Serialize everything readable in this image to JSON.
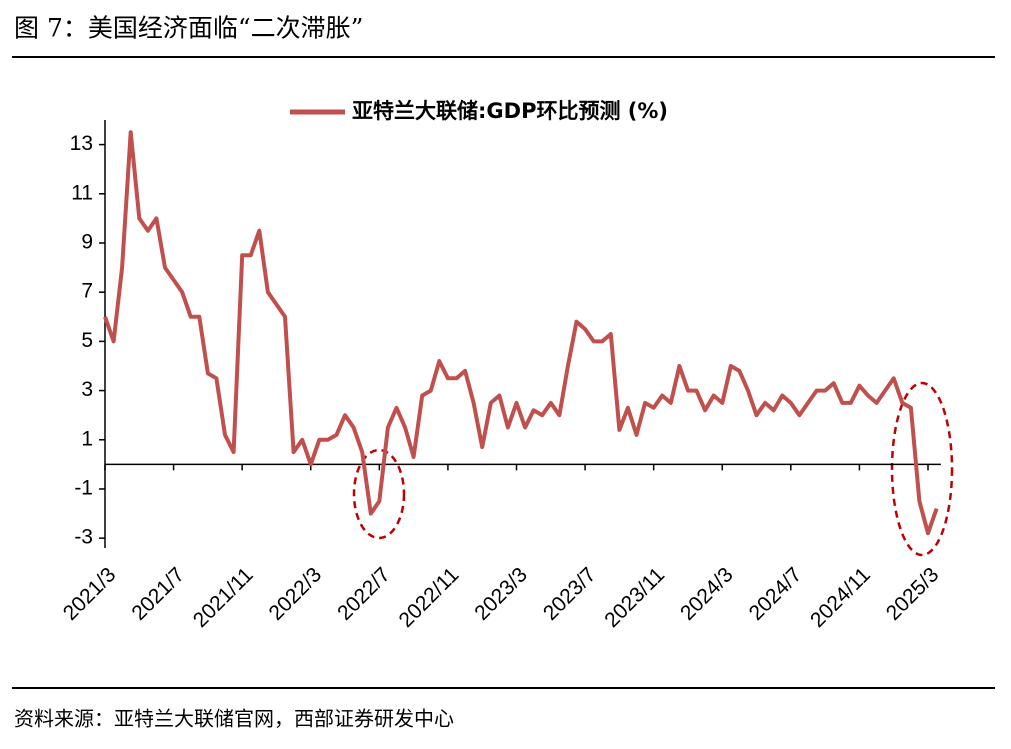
{
  "chart_data": {
    "type": "line",
    "title": "图 7：美国经济面临“二次滞胀”",
    "source": "资料来源：亚特兰大联储官网，西部证券研发中心",
    "categories": [
      "2021/3",
      null,
      null,
      null,
      null,
      null,
      null,
      null,
      "2021/7",
      null,
      null,
      null,
      null,
      null,
      null,
      null,
      "2021/11",
      null,
      null,
      null,
      null,
      null,
      null,
      null,
      "2022/3",
      null,
      null,
      null,
      null,
      null,
      null,
      null,
      "2022/7",
      null,
      null,
      null,
      null,
      null,
      null,
      null,
      "2022/11",
      null,
      null,
      null,
      null,
      null,
      null,
      null,
      "2023/3",
      null,
      null,
      null,
      null,
      null,
      null,
      null,
      "2023/7",
      null,
      null,
      null,
      null,
      null,
      null,
      null,
      "2023/11",
      null,
      null,
      null,
      null,
      null,
      null,
      null,
      "2024/3",
      null,
      null,
      null,
      null,
      null,
      null,
      null,
      "2024/7",
      null,
      null,
      null,
      null,
      null,
      null,
      null,
      "2024/11",
      null,
      null,
      null,
      null,
      null,
      null,
      null,
      "2025/3",
      null
    ],
    "series": [
      {
        "name": "亚特兰大联储:GDP环比预测 (%)",
        "color": "#c0504d",
        "values": [
          6,
          5,
          8,
          13.5,
          10,
          9.5,
          10,
          8,
          7.5,
          7,
          6,
          6,
          3.7,
          3.5,
          1.2,
          0.5,
          8.5,
          8.5,
          9.5,
          7,
          6.5,
          6,
          0.5,
          1,
          0,
          1,
          1,
          1.2,
          2,
          1.5,
          0.5,
          -2,
          -1.5,
          1.5,
          2.3,
          1.5,
          0.3,
          2.8,
          3,
          4.2,
          3.5,
          3.5,
          3.8,
          2.5,
          0.7,
          2.5,
          2.8,
          1.5,
          2.5,
          1.5,
          2.2,
          2,
          2.5,
          2,
          4,
          5.8,
          5.5,
          5,
          5,
          5.3,
          1.4,
          2.3,
          1.2,
          2.5,
          2.3,
          2.8,
          2.5,
          4,
          3,
          3,
          2.2,
          2.8,
          2.5,
          4,
          3.8,
          3,
          2,
          2.5,
          2.2,
          2.8,
          2.5,
          2,
          2.5,
          3,
          3,
          3.3,
          2.5,
          2.5,
          3.2,
          2.8,
          2.5,
          3,
          3.5,
          2.5,
          2.3,
          -1.5,
          -2.8,
          -1.8
        ]
      }
    ],
    "ylim": [
      -3.4,
      14
    ],
    "yticks": [
      -3,
      -1,
      1,
      3,
      5,
      7,
      9,
      11,
      13
    ]
  }
}
